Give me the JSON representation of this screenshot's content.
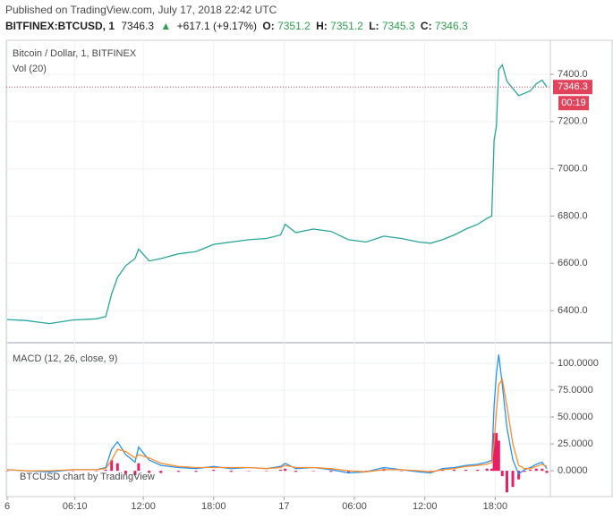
{
  "header": {
    "published": "Published on TradingView.com, July 17, 2018 22:42 UTC",
    "symbol": "BITFINEX:BTCUSD, 1",
    "last": 7346.3,
    "arrow": "▲",
    "change": "+617.1 (+9.17%)",
    "o_label": "O:",
    "open": 7351.2,
    "h_label": "H:",
    "high": 7351.2,
    "l_label": "L:",
    "low": 7345.3,
    "c_label": "C:",
    "close": 7346.3,
    "watermark": "BTCUSD chart by TradingView"
  },
  "chart_data": [
    {
      "type": "line",
      "title": "Bitcoin / Dollar, 1, BITFINEX",
      "subtitle": "Vol (20)",
      "color": "#26a69a",
      "x": [
        0.4,
        2,
        4,
        6,
        8,
        8.8,
        9.3,
        9.8,
        10.5,
        11.3,
        11.6,
        12.5,
        13.5,
        15,
        16.5,
        18,
        19.5,
        21,
        22.5,
        23.7,
        24.1,
        25,
        26.5,
        28,
        29.5,
        31,
        32.5,
        34,
        35.5,
        36.5,
        37.5,
        38.5,
        39.5,
        40.5,
        41.3,
        41.7,
        41.9,
        42.1,
        42.3,
        42.6,
        43,
        43.5,
        44,
        44.5,
        45,
        45.5,
        46,
        46.4
      ],
      "values": [
        6362,
        6358,
        6345,
        6360,
        6365,
        6375,
        6470,
        6540,
        6590,
        6620,
        6660,
        6610,
        6620,
        6640,
        6650,
        6680,
        6690,
        6700,
        6705,
        6720,
        6765,
        6730,
        6745,
        6735,
        6700,
        6690,
        6715,
        6705,
        6690,
        6685,
        6700,
        6720,
        6745,
        6765,
        6790,
        6800,
        7120,
        7180,
        7420,
        7440,
        7370,
        7340,
        7310,
        7320,
        7330,
        7360,
        7375,
        7346.3
      ],
      "xlim": [
        0.32,
        46.7
      ],
      "ylim": [
        6264,
        7544
      ],
      "yticks": [
        {
          "value": 6400,
          "label": "6400.0"
        },
        {
          "value": 6600,
          "label": "6600.0"
        },
        {
          "value": 6800,
          "label": "6800.0"
        },
        {
          "value": 7000,
          "label": "7000.0"
        },
        {
          "value": 7200,
          "label": "7200.0"
        },
        {
          "value": 7400,
          "label": "7400.0"
        }
      ],
      "last_price": 7346.3,
      "last_color": "#e0435b",
      "countdown": "00:19",
      "grid": true
    },
    {
      "type": "macd",
      "title": "MACD (12, 26, close, 9)",
      "x": [
        0.4,
        2,
        4,
        6,
        8,
        8.8,
        9.3,
        9.8,
        10.5,
        11.3,
        11.6,
        12.5,
        13.5,
        15,
        16.5,
        18,
        19.5,
        21,
        22.5,
        23.7,
        24.1,
        25,
        26.5,
        28,
        29.5,
        31,
        32.5,
        34,
        35.5,
        36.5,
        37.5,
        38.5,
        39.5,
        40.5,
        41.3,
        41.7,
        41.9,
        42.1,
        42.3,
        42.6,
        43,
        43.5,
        44,
        44.5,
        45,
        45.5,
        46,
        46.4
      ],
      "series": [
        {
          "color": "#2196f3",
          "values": [
            1,
            0,
            -1,
            1,
            1,
            3,
            20,
            27,
            15,
            8,
            22,
            10,
            5,
            3,
            2,
            4,
            2,
            3,
            2,
            4,
            7,
            2,
            3,
            1,
            -2,
            -1,
            3,
            1,
            -1,
            -2,
            2,
            3,
            5,
            6,
            8,
            10,
            60,
            90,
            108,
            80,
            40,
            10,
            -3,
            1,
            3,
            6,
            8,
            2
          ]
        },
        {
          "color": "#ff8c2b",
          "values": [
            1,
            0,
            0,
            1,
            1,
            2,
            10,
            20,
            18,
            12,
            15,
            12,
            7,
            4,
            3,
            3,
            3,
            3,
            2,
            3,
            5,
            3,
            3,
            2,
            0,
            -1,
            1,
            1,
            0,
            -1,
            1,
            2,
            4,
            5,
            6,
            8,
            25,
            55,
            80,
            85,
            60,
            25,
            5,
            2,
            2,
            4,
            6,
            4
          ]
        }
      ],
      "histogram": {
        "color": "#e91e63",
        "values": [
          0,
          0,
          -1,
          0,
          0,
          1,
          10,
          7,
          -3,
          -4,
          7,
          -2,
          -2,
          -1,
          -1,
          1,
          -1,
          0,
          0,
          1,
          2,
          -1,
          0,
          -1,
          -2,
          0,
          2,
          0,
          -1,
          -1,
          1,
          1,
          1,
          1,
          2,
          2,
          35,
          35,
          28,
          -5,
          -20,
          -15,
          -8,
          -1,
          1,
          2,
          2,
          -2
        ]
      },
      "xlim": [
        0.32,
        46.7
      ],
      "ylim": [
        -24,
        119
      ],
      "yticks": [
        {
          "value": 0,
          "label": "0.0000"
        },
        {
          "value": 25,
          "label": "25.0000"
        },
        {
          "value": 50,
          "label": "50.0000"
        },
        {
          "value": 75,
          "label": "75.0000"
        },
        {
          "value": 100,
          "label": "100.0000"
        }
      ],
      "xticks": [
        {
          "value": 0.4,
          "label": "6"
        },
        {
          "value": 6.17,
          "label": "06:10"
        },
        {
          "value": 12,
          "label": "12:00"
        },
        {
          "value": 18,
          "label": "18:00"
        },
        {
          "value": 24,
          "label": "17"
        },
        {
          "value": 30,
          "label": "06:00"
        },
        {
          "value": 36,
          "label": "12:00"
        },
        {
          "value": 42,
          "label": "18:00"
        }
      ],
      "grid": true
    }
  ]
}
